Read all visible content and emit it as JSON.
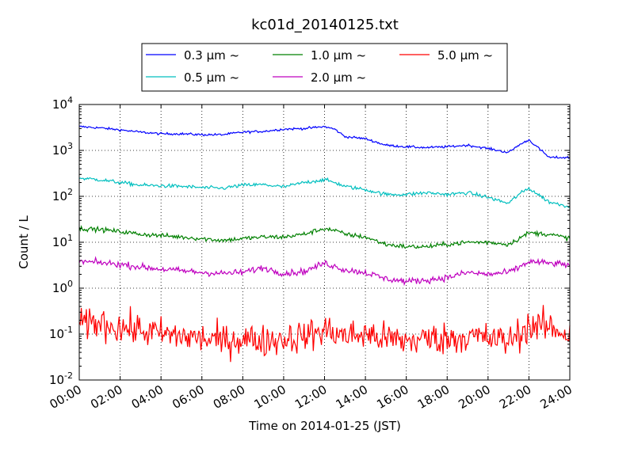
{
  "chart_data": {
    "type": "line",
    "title": "kc01d_20140125.txt",
    "xlabel": "Time on 2014-01-25 (JST)",
    "ylabel": "Count / L",
    "yscale": "log",
    "xlim": [
      "00:00",
      "24:00"
    ],
    "ylim": [
      0.01,
      10000
    ],
    "grid": true,
    "legend_position": "top-center",
    "x_ticks": [
      "00:00",
      "02:00",
      "04:00",
      "06:00",
      "08:00",
      "10:00",
      "12:00",
      "14:00",
      "16:00",
      "18:00",
      "20:00",
      "22:00",
      "24:00"
    ],
    "y_ticks": [
      {
        "base": "10",
        "exp": "-2",
        "value": 0.01
      },
      {
        "base": "10",
        "exp": "-1",
        "value": 0.1
      },
      {
        "base": "10",
        "exp": "0",
        "value": 1
      },
      {
        "base": "10",
        "exp": "1",
        "value": 10
      },
      {
        "base": "10",
        "exp": "2",
        "value": 100
      },
      {
        "base": "10",
        "exp": "3",
        "value": 1000
      },
      {
        "base": "10",
        "exp": "4",
        "value": 10000
      }
    ],
    "x": [
      "00:00",
      "01:00",
      "02:00",
      "03:00",
      "04:00",
      "05:00",
      "06:00",
      "07:00",
      "08:00",
      "09:00",
      "10:00",
      "11:00",
      "12:00",
      "12:30",
      "13:00",
      "14:00",
      "15:00",
      "16:00",
      "17:00",
      "18:00",
      "19:00",
      "20:00",
      "21:00",
      "21:30",
      "22:00",
      "23:00",
      "24:00"
    ],
    "series": [
      {
        "name": "0.3 µm ~",
        "color": "#0000ff",
        "noise": 0.025,
        "values": [
          3300,
          3100,
          2800,
          2500,
          2300,
          2300,
          2200,
          2200,
          2500,
          2600,
          2900,
          3000,
          3300,
          2900,
          2000,
          1800,
          1300,
          1200,
          1150,
          1200,
          1300,
          1100,
          900,
          1300,
          1700,
          700,
          700
        ]
      },
      {
        "name": "0.5 µm ~",
        "color": "#00bfbf",
        "noise": 0.04,
        "values": [
          250,
          230,
          200,
          175,
          170,
          165,
          155,
          150,
          175,
          180,
          160,
          200,
          230,
          200,
          165,
          140,
          110,
          110,
          120,
          110,
          120,
          95,
          70,
          110,
          150,
          75,
          60
        ]
      },
      {
        "name": "1.0 µm ~",
        "color": "#008000",
        "noise": 0.05,
        "values": [
          20,
          19,
          17,
          15,
          14,
          13,
          12,
          11,
          12,
          13,
          13,
          15,
          20,
          18,
          15,
          13,
          9,
          8,
          8,
          9,
          10,
          10,
          9,
          12,
          16,
          15,
          12
        ]
      },
      {
        "name": "2.0 µm ~",
        "color": "#bf00bf",
        "noise": 0.07,
        "values": [
          3.8,
          3.6,
          3.3,
          2.9,
          2.6,
          2.4,
          2.2,
          2.1,
          2.2,
          2.8,
          2.1,
          2.3,
          3.5,
          3.0,
          2.5,
          2.2,
          1.6,
          1.4,
          1.5,
          1.7,
          2.2,
          2.0,
          2.2,
          2.8,
          3.8,
          3.5,
          3.2
        ]
      },
      {
        "name": "5.0 µm ~",
        "color": "#ff0000",
        "noise": 0.35,
        "values": [
          0.15,
          0.18,
          0.14,
          0.12,
          0.1,
          0.09,
          0.08,
          0.07,
          0.08,
          0.07,
          0.08,
          0.09,
          0.12,
          0.11,
          0.09,
          0.1,
          0.08,
          0.07,
          0.08,
          0.08,
          0.09,
          0.08,
          0.07,
          0.1,
          0.15,
          0.14,
          0.1
        ]
      }
    ]
  }
}
